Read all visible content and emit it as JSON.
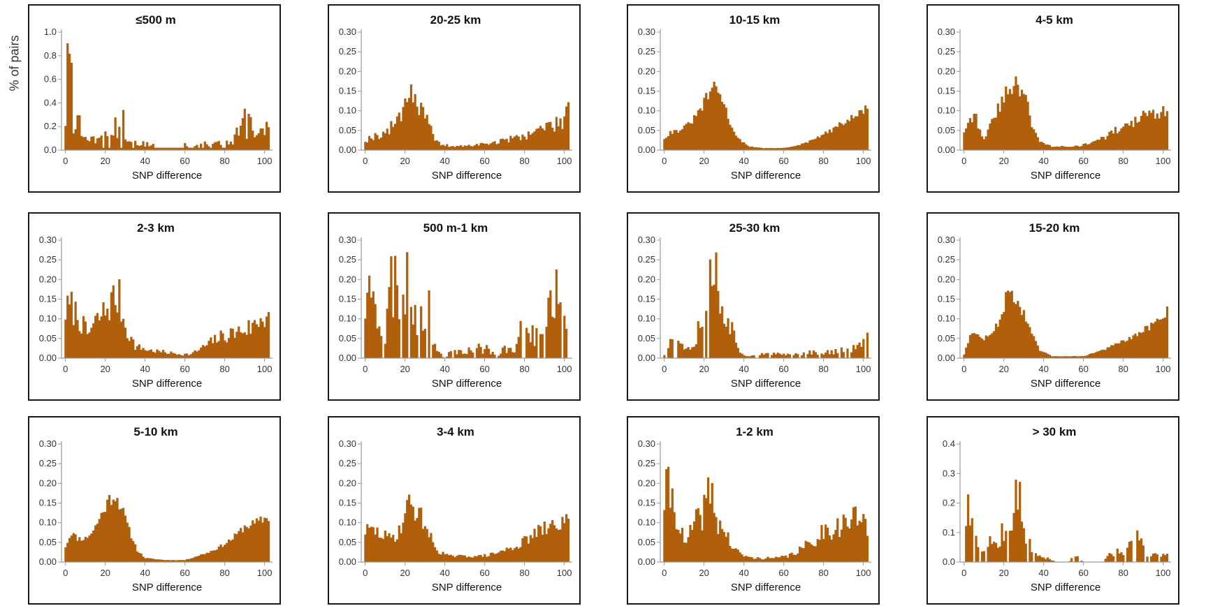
{
  "ylabel": "% of pairs",
  "chart_data": [
    {
      "type": "bar",
      "title": "≤500 m",
      "xlabel": "SNP difference",
      "ylim": [
        0,
        1.0
      ],
      "yticks": [
        "0.0",
        "0.2",
        "0.4",
        "0.6",
        "0.8",
        "1.0"
      ],
      "xticks": [
        "0",
        "20",
        "40",
        "60",
        "80",
        "100"
      ],
      "peaks": [
        [
          0,
          0.3
        ],
        [
          2,
          0.95
        ],
        [
          4,
          0.32
        ],
        [
          6,
          0.28
        ],
        [
          8,
          0.2
        ],
        [
          10,
          0.1
        ],
        [
          14,
          0.08
        ],
        [
          18,
          0.2
        ],
        [
          22,
          0.15
        ],
        [
          25,
          0.22
        ],
        [
          29,
          0.22
        ],
        [
          32,
          0.08
        ],
        [
          36,
          0.05
        ],
        [
          42,
          0.05
        ],
        [
          48,
          0.0
        ],
        [
          58,
          0.0
        ],
        [
          60,
          0.06
        ],
        [
          62,
          0.0
        ],
        [
          70,
          0.06
        ],
        [
          76,
          0.06
        ],
        [
          82,
          0.05
        ],
        [
          86,
          0.12
        ],
        [
          90,
          0.22
        ],
        [
          93,
          0.2
        ],
        [
          96,
          0.12
        ],
        [
          100,
          0.15
        ],
        [
          102,
          0.26
        ]
      ],
      "baseline": 0.02,
      "noise": 0.6,
      "seed": 3
    },
    {
      "type": "bar",
      "title": "2-3 km",
      "xlabel": "SNP difference",
      "ylim": [
        0,
        0.3
      ],
      "yticks": [
        "0.00",
        "0.05",
        "0.10",
        "0.15",
        "0.20",
        "0.25",
        "0.30"
      ],
      "xticks": [
        "0",
        "20",
        "40",
        "60",
        "80",
        "100"
      ],
      "peaks": [
        [
          0,
          0.12
        ],
        [
          3,
          0.13
        ],
        [
          7,
          0.1
        ],
        [
          11,
          0.06
        ],
        [
          15,
          0.09
        ],
        [
          20,
          0.12
        ],
        [
          24,
          0.15
        ],
        [
          27,
          0.15
        ],
        [
          30,
          0.08
        ],
        [
          35,
          0.03
        ],
        [
          42,
          0.02
        ],
        [
          50,
          0.015
        ],
        [
          58,
          0.01
        ],
        [
          63,
          0.01
        ],
        [
          70,
          0.03
        ],
        [
          76,
          0.05
        ],
        [
          82,
          0.06
        ],
        [
          88,
          0.07
        ],
        [
          94,
          0.08
        ],
        [
          98,
          0.1
        ],
        [
          102,
          0.12
        ]
      ],
      "baseline": 0.003,
      "noise": 0.35,
      "seed": 7
    },
    {
      "type": "bar",
      "title": "5-10 km",
      "xlabel": "SNP difference",
      "ylim": [
        0,
        0.3
      ],
      "yticks": [
        "0.00",
        "0.05",
        "0.10",
        "0.15",
        "0.20",
        "0.25",
        "0.30"
      ],
      "xticks": [
        "0",
        "20",
        "40",
        "60",
        "80",
        "100"
      ],
      "peaks": [
        [
          0,
          0.04
        ],
        [
          3,
          0.075
        ],
        [
          6,
          0.06
        ],
        [
          10,
          0.06
        ],
        [
          14,
          0.08
        ],
        [
          18,
          0.12
        ],
        [
          22,
          0.16
        ],
        [
          25,
          0.17
        ],
        [
          28,
          0.14
        ],
        [
          32,
          0.08
        ],
        [
          36,
          0.03
        ],
        [
          40,
          0.01
        ],
        [
          50,
          0.005
        ],
        [
          60,
          0.005
        ],
        [
          66,
          0.015
        ],
        [
          72,
          0.025
        ],
        [
          78,
          0.04
        ],
        [
          84,
          0.06
        ],
        [
          90,
          0.09
        ],
        [
          96,
          0.1
        ],
        [
          102,
          0.115
        ]
      ],
      "baseline": 0.002,
      "noise": 0.12,
      "seed": 11
    },
    {
      "type": "bar",
      "title": "20-25 km",
      "xlabel": "SNP difference",
      "ylim": [
        0,
        0.3
      ],
      "yticks": [
        "0.00",
        "0.05",
        "0.10",
        "0.15",
        "0.20",
        "0.25",
        "0.30"
      ],
      "xticks": [
        "0",
        "20",
        "40",
        "60",
        "80",
        "100"
      ],
      "peaks": [
        [
          0,
          0.025
        ],
        [
          4,
          0.035
        ],
        [
          8,
          0.04
        ],
        [
          12,
          0.05
        ],
        [
          16,
          0.08
        ],
        [
          20,
          0.12
        ],
        [
          22,
          0.17
        ],
        [
          25,
          0.13
        ],
        [
          28,
          0.1
        ],
        [
          32,
          0.06
        ],
        [
          36,
          0.02
        ],
        [
          42,
          0.01
        ],
        [
          50,
          0.01
        ],
        [
          58,
          0.015
        ],
        [
          66,
          0.02
        ],
        [
          74,
          0.03
        ],
        [
          82,
          0.04
        ],
        [
          90,
          0.06
        ],
        [
          96,
          0.065
        ],
        [
          100,
          0.08
        ],
        [
          102,
          0.13
        ]
      ],
      "baseline": 0.003,
      "noise": 0.3,
      "seed": 19
    },
    {
      "type": "bar",
      "title": "500 m-1 km",
      "xlabel": "SNP difference",
      "ylim": [
        0,
        0.3
      ],
      "yticks": [
        "0.00",
        "0.05",
        "0.10",
        "0.15",
        "0.20",
        "0.25",
        "0.30"
      ],
      "xticks": [
        "0",
        "20",
        "40",
        "60",
        "80",
        "100"
      ],
      "peaks": [
        [
          0,
          0.14
        ],
        [
          2,
          0.17
        ],
        [
          4,
          0.25
        ],
        [
          6,
          0.14
        ],
        [
          8,
          0.08
        ],
        [
          10,
          0.04
        ],
        [
          13,
          0.2
        ],
        [
          16,
          0.18
        ],
        [
          19,
          0.14
        ],
        [
          21,
          0.28
        ],
        [
          24,
          0.14
        ],
        [
          27,
          0.1
        ],
        [
          30,
          0.15
        ],
        [
          33,
          0.1
        ],
        [
          36,
          0.02
        ],
        [
          40,
          0.0
        ],
        [
          44,
          0.02
        ],
        [
          50,
          0.02
        ],
        [
          56,
          0.025
        ],
        [
          62,
          0.025
        ],
        [
          66,
          0.0
        ],
        [
          70,
          0.025
        ],
        [
          76,
          0.03
        ],
        [
          80,
          0.1
        ],
        [
          84,
          0.06
        ],
        [
          88,
          0.05
        ],
        [
          92,
          0.1
        ],
        [
          96,
          0.22
        ],
        [
          99,
          0.1
        ],
        [
          102,
          0.17
        ]
      ],
      "baseline": 0.0,
      "noise": 0.55,
      "seed": 23
    },
    {
      "type": "bar",
      "title": "3-4 km",
      "xlabel": "SNP difference",
      "ylim": [
        0,
        0.3
      ],
      "yticks": [
        "0.00",
        "0.05",
        "0.10",
        "0.15",
        "0.20",
        "0.25",
        "0.30"
      ],
      "xticks": [
        "0",
        "20",
        "40",
        "60",
        "80",
        "100"
      ],
      "peaks": [
        [
          0,
          0.08
        ],
        [
          4,
          0.08
        ],
        [
          8,
          0.07
        ],
        [
          12,
          0.06
        ],
        [
          16,
          0.07
        ],
        [
          20,
          0.12
        ],
        [
          23,
          0.16
        ],
        [
          26,
          0.12
        ],
        [
          29,
          0.11
        ],
        [
          32,
          0.07
        ],
        [
          36,
          0.03
        ],
        [
          42,
          0.015
        ],
        [
          50,
          0.015
        ],
        [
          58,
          0.015
        ],
        [
          64,
          0.02
        ],
        [
          70,
          0.03
        ],
        [
          76,
          0.04
        ],
        [
          82,
          0.06
        ],
        [
          88,
          0.08
        ],
        [
          94,
          0.09
        ],
        [
          98,
          0.1
        ],
        [
          102,
          0.11
        ]
      ],
      "baseline": 0.003,
      "noise": 0.25,
      "seed": 29
    },
    {
      "type": "bar",
      "title": "10-15 km",
      "xlabel": "SNP difference",
      "ylim": [
        0,
        0.3
      ],
      "yticks": [
        "0.00",
        "0.05",
        "0.10",
        "0.15",
        "0.20",
        "0.25",
        "0.30"
      ],
      "xticks": [
        "0",
        "20",
        "40",
        "60",
        "80",
        "100"
      ],
      "peaks": [
        [
          0,
          0.03
        ],
        [
          3,
          0.045
        ],
        [
          7,
          0.05
        ],
        [
          11,
          0.06
        ],
        [
          15,
          0.08
        ],
        [
          19,
          0.11
        ],
        [
          23,
          0.15
        ],
        [
          26,
          0.16
        ],
        [
          29,
          0.13
        ],
        [
          33,
          0.07
        ],
        [
          37,
          0.03
        ],
        [
          42,
          0.01
        ],
        [
          50,
          0.005
        ],
        [
          58,
          0.005
        ],
        [
          66,
          0.01
        ],
        [
          72,
          0.02
        ],
        [
          78,
          0.035
        ],
        [
          84,
          0.05
        ],
        [
          90,
          0.07
        ],
        [
          96,
          0.085
        ],
        [
          102,
          0.11
        ]
      ],
      "baseline": 0.002,
      "noise": 0.12,
      "seed": 31
    },
    {
      "type": "bar",
      "title": "25-30 km",
      "xlabel": "SNP difference",
      "ylim": [
        0,
        0.3
      ],
      "yticks": [
        "0.00",
        "0.05",
        "0.10",
        "0.15",
        "0.20",
        "0.25",
        "0.30"
      ],
      "xticks": [
        "0",
        "20",
        "40",
        "60",
        "80",
        "100"
      ],
      "peaks": [
        [
          0,
          0.01
        ],
        [
          3,
          0.06
        ],
        [
          6,
          0.05
        ],
        [
          10,
          0.035
        ],
        [
          14,
          0.03
        ],
        [
          17,
          0.08
        ],
        [
          20,
          0.12
        ],
        [
          23,
          0.2
        ],
        [
          25,
          0.24
        ],
        [
          28,
          0.17
        ],
        [
          31,
          0.12
        ],
        [
          34,
          0.07
        ],
        [
          38,
          0.02
        ],
        [
          42,
          0.005
        ],
        [
          50,
          0.01
        ],
        [
          58,
          0.01
        ],
        [
          66,
          0.01
        ],
        [
          74,
          0.015
        ],
        [
          82,
          0.015
        ],
        [
          90,
          0.02
        ],
        [
          96,
          0.025
        ],
        [
          102,
          0.05
        ]
      ],
      "baseline": 0.0,
      "noise": 0.45,
      "seed": 37
    },
    {
      "type": "bar",
      "title": "1-2 km",
      "xlabel": "SNP difference",
      "ylim": [
        0,
        0.3
      ],
      "yticks": [
        "0.00",
        "0.05",
        "0.10",
        "0.15",
        "0.20",
        "0.25",
        "0.30"
      ],
      "xticks": [
        "0",
        "20",
        "40",
        "60",
        "80",
        "100"
      ],
      "peaks": [
        [
          0,
          0.16
        ],
        [
          2,
          0.19
        ],
        [
          5,
          0.15
        ],
        [
          8,
          0.08
        ],
        [
          11,
          0.04
        ],
        [
          14,
          0.09
        ],
        [
          18,
          0.11
        ],
        [
          21,
          0.15
        ],
        [
          23,
          0.19
        ],
        [
          26,
          0.11
        ],
        [
          30,
          0.08
        ],
        [
          34,
          0.04
        ],
        [
          38,
          0.02
        ],
        [
          44,
          0.01
        ],
        [
          50,
          0.01
        ],
        [
          56,
          0.01
        ],
        [
          62,
          0.015
        ],
        [
          68,
          0.03
        ],
        [
          74,
          0.05
        ],
        [
          80,
          0.08
        ],
        [
          86,
          0.09
        ],
        [
          92,
          0.1
        ],
        [
          98,
          0.12
        ],
        [
          102,
          0.07
        ]
      ],
      "baseline": 0.002,
      "noise": 0.35,
      "seed": 41
    },
    {
      "type": "bar",
      "title": "4-5 km",
      "xlabel": "SNP difference",
      "ylim": [
        0,
        0.3
      ],
      "yticks": [
        "0.00",
        "0.05",
        "0.10",
        "0.15",
        "0.20",
        "0.25",
        "0.30"
      ],
      "xticks": [
        "0",
        "20",
        "40",
        "60",
        "80",
        "100"
      ],
      "peaks": [
        [
          0,
          0.05
        ],
        [
          3,
          0.09
        ],
        [
          6,
          0.08
        ],
        [
          10,
          0.03
        ],
        [
          14,
          0.07
        ],
        [
          18,
          0.11
        ],
        [
          22,
          0.16
        ],
        [
          25,
          0.18
        ],
        [
          28,
          0.15
        ],
        [
          31,
          0.13
        ],
        [
          34,
          0.07
        ],
        [
          38,
          0.02
        ],
        [
          44,
          0.01
        ],
        [
          50,
          0.01
        ],
        [
          58,
          0.01
        ],
        [
          64,
          0.02
        ],
        [
          70,
          0.03
        ],
        [
          76,
          0.05
        ],
        [
          82,
          0.06
        ],
        [
          88,
          0.08
        ],
        [
          94,
          0.09
        ],
        [
          102,
          0.11
        ]
      ],
      "baseline": 0.002,
      "noise": 0.2,
      "seed": 43
    },
    {
      "type": "bar",
      "title": "15-20 km",
      "xlabel": "SNP difference",
      "ylim": [
        0,
        0.3
      ],
      "yticks": [
        "0.00",
        "0.05",
        "0.10",
        "0.15",
        "0.20",
        "0.25",
        "0.30"
      ],
      "xticks": [
        "0",
        "20",
        "40",
        "60",
        "80",
        "100"
      ],
      "peaks": [
        [
          0,
          0.01
        ],
        [
          3,
          0.06
        ],
        [
          6,
          0.06
        ],
        [
          10,
          0.05
        ],
        [
          14,
          0.06
        ],
        [
          18,
          0.1
        ],
        [
          21,
          0.15
        ],
        [
          24,
          0.17
        ],
        [
          27,
          0.14
        ],
        [
          30,
          0.11
        ],
        [
          34,
          0.06
        ],
        [
          38,
          0.02
        ],
        [
          44,
          0.005
        ],
        [
          52,
          0.005
        ],
        [
          60,
          0.005
        ],
        [
          66,
          0.015
        ],
        [
          72,
          0.025
        ],
        [
          78,
          0.04
        ],
        [
          84,
          0.05
        ],
        [
          90,
          0.07
        ],
        [
          96,
          0.09
        ],
        [
          102,
          0.12
        ]
      ],
      "baseline": 0.002,
      "noise": 0.12,
      "seed": 47
    },
    {
      "type": "bar",
      "title": "> 30 km",
      "xlabel": "SNP difference",
      "ylim": [
        0,
        0.4
      ],
      "yticks": [
        "0.0",
        "0.1",
        "0.2",
        "0.3",
        "0.4"
      ],
      "xticks": [
        "0",
        "20",
        "40",
        "60",
        "80",
        "100"
      ],
      "peaks": [
        [
          0,
          0.0
        ],
        [
          1,
          0.2
        ],
        [
          3,
          0.18
        ],
        [
          6,
          0.1
        ],
        [
          9,
          0.05
        ],
        [
          12,
          0.07
        ],
        [
          16,
          0.07
        ],
        [
          19,
          0.12
        ],
        [
          22,
          0.15
        ],
        [
          25,
          0.2
        ],
        [
          27,
          0.32
        ],
        [
          30,
          0.12
        ],
        [
          33,
          0.06
        ],
        [
          36,
          0.02
        ],
        [
          40,
          0.02
        ],
        [
          46,
          0.0
        ],
        [
          52,
          0.0
        ],
        [
          56,
          0.02
        ],
        [
          60,
          0.0
        ],
        [
          70,
          0.0
        ],
        [
          72,
          0.02
        ],
        [
          76,
          0.03
        ],
        [
          80,
          0.04
        ],
        [
          84,
          0.05
        ],
        [
          88,
          0.1
        ],
        [
          92,
          0.03
        ],
        [
          96,
          0.02
        ],
        [
          100,
          0.02
        ],
        [
          102,
          0.02
        ]
      ],
      "baseline": 0.0,
      "noise": 0.5,
      "seed": 53
    }
  ]
}
